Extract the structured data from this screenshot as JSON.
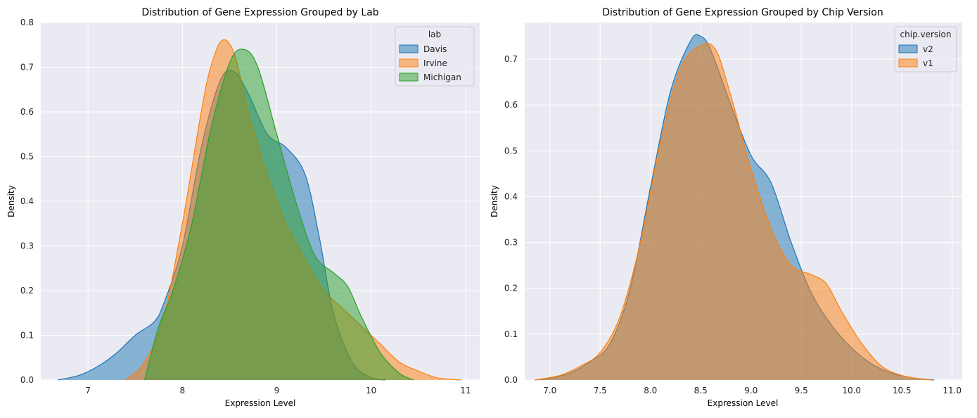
{
  "chart_data": [
    {
      "type": "area",
      "title": "Distribution of Gene Expression Grouped by Lab",
      "xlabel": "Expression Level",
      "ylabel": "Density",
      "xlim": [
        6.5,
        11.15
      ],
      "ylim": [
        0,
        0.8
      ],
      "xticks": [
        7,
        8,
        9,
        10,
        11
      ],
      "yticks": [
        0.0,
        0.1,
        0.2,
        0.3,
        0.4,
        0.5,
        0.6,
        0.7,
        0.8
      ],
      "ytick_decimals": 1,
      "xtick_decimals": 0,
      "grid": true,
      "legend": {
        "title": "lab",
        "position": "top-right"
      },
      "series": [
        {
          "name": "Davis",
          "color": "#1f77b4",
          "x": [
            6.68,
            6.9,
            7.1,
            7.3,
            7.5,
            7.7,
            7.8,
            8.0,
            8.2,
            8.4,
            8.55,
            8.7,
            8.9,
            9.1,
            9.3,
            9.45,
            9.6,
            9.8,
            10.0,
            10.15
          ],
          "y": [
            0.0,
            0.01,
            0.03,
            0.06,
            0.1,
            0.13,
            0.17,
            0.3,
            0.52,
            0.67,
            0.69,
            0.64,
            0.55,
            0.52,
            0.46,
            0.32,
            0.15,
            0.04,
            0.005,
            0.0
          ]
        },
        {
          "name": "Irvine",
          "color": "#ff7f0e",
          "x": [
            7.4,
            7.6,
            7.8,
            8.0,
            8.2,
            8.3,
            8.42,
            8.55,
            8.7,
            8.9,
            9.1,
            9.3,
            9.5,
            9.7,
            9.9,
            10.1,
            10.3,
            10.5,
            10.7,
            10.95
          ],
          "y": [
            0.0,
            0.04,
            0.14,
            0.35,
            0.6,
            0.7,
            0.76,
            0.73,
            0.6,
            0.46,
            0.35,
            0.27,
            0.2,
            0.16,
            0.12,
            0.08,
            0.04,
            0.02,
            0.005,
            0.0
          ]
        },
        {
          "name": "Michigan",
          "color": "#2ca02c",
          "x": [
            7.6,
            7.75,
            7.9,
            8.1,
            8.3,
            8.5,
            8.65,
            8.8,
            9.0,
            9.2,
            9.4,
            9.6,
            9.75,
            9.9,
            10.1,
            10.3,
            10.45
          ],
          "y": [
            0.0,
            0.12,
            0.2,
            0.35,
            0.56,
            0.71,
            0.74,
            0.7,
            0.55,
            0.4,
            0.28,
            0.24,
            0.21,
            0.14,
            0.06,
            0.015,
            0.0
          ]
        }
      ]
    },
    {
      "type": "area",
      "title": "Distribution of Gene Expression Grouped by Chip Version",
      "xlabel": "Expression Level",
      "ylabel": "Density",
      "xlim": [
        6.75,
        11.1
      ],
      "ylim": [
        0,
        0.78
      ],
      "xticks": [
        7.0,
        7.5,
        8.0,
        8.5,
        9.0,
        9.5,
        10.0,
        10.5,
        11.0
      ],
      "yticks": [
        0.0,
        0.1,
        0.2,
        0.3,
        0.4,
        0.5,
        0.6,
        0.7
      ],
      "ytick_decimals": 1,
      "xtick_decimals": 1,
      "grid": true,
      "legend": {
        "title": "chip.version",
        "position": "top-right"
      },
      "series": [
        {
          "name": "v2",
          "color": "#1f77b4",
          "x": [
            6.85,
            7.0,
            7.2,
            7.4,
            7.6,
            7.8,
            8.0,
            8.2,
            8.4,
            8.5,
            8.6,
            8.8,
            9.0,
            9.2,
            9.4,
            9.6,
            9.8,
            10.0,
            10.2,
            10.4,
            10.6,
            10.82
          ],
          "y": [
            0.0,
            0.004,
            0.015,
            0.04,
            0.08,
            0.2,
            0.42,
            0.63,
            0.74,
            0.75,
            0.72,
            0.6,
            0.49,
            0.43,
            0.3,
            0.19,
            0.12,
            0.07,
            0.035,
            0.015,
            0.005,
            0.0
          ]
        },
        {
          "name": "v1",
          "color": "#ff7f0e",
          "x": [
            6.85,
            7.1,
            7.3,
            7.5,
            7.7,
            7.9,
            8.1,
            8.3,
            8.5,
            8.65,
            8.8,
            9.0,
            9.2,
            9.4,
            9.6,
            9.75,
            9.9,
            10.1,
            10.3,
            10.5,
            10.7,
            10.8
          ],
          "y": [
            0.0,
            0.01,
            0.03,
            0.06,
            0.14,
            0.3,
            0.52,
            0.68,
            0.73,
            0.72,
            0.62,
            0.46,
            0.33,
            0.25,
            0.23,
            0.21,
            0.15,
            0.08,
            0.03,
            0.01,
            0.002,
            0.0
          ]
        }
      ]
    }
  ]
}
